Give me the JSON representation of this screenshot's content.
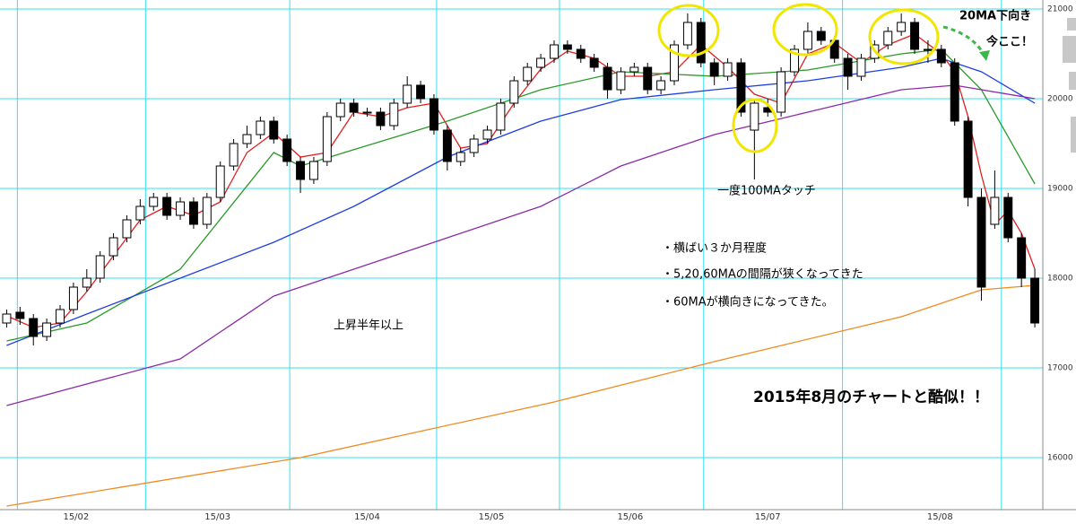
{
  "chart_data": {
    "type": "candlestick",
    "xlim": [
      -0.5,
      77.6
    ],
    "ylim": [
      15420,
      21100
    ],
    "yticks": [
      16000,
      17000,
      18000,
      19000,
      20000,
      21000
    ],
    "xticks": [
      {
        "value": 5.2,
        "label": "15/02"
      },
      {
        "value": 15.8,
        "label": "15/03"
      },
      {
        "value": 27,
        "label": "15/04"
      },
      {
        "value": 36.3,
        "label": "15/05"
      },
      {
        "value": 46.7,
        "label": "15/06"
      },
      {
        "value": 57,
        "label": "15/07"
      },
      {
        "value": 69.9,
        "label": "15/08"
      }
    ],
    "xgrid": [
      0.8,
      10.4,
      21.2,
      32.2,
      41.4,
      52.2,
      62.6,
      74.5
    ],
    "grid": true,
    "up_color": "#ffffff",
    "down_color": "#000000",
    "ohlc": [
      [
        17500,
        17650,
        17450,
        17600
      ],
      [
        17620,
        17680,
        17480,
        17550
      ],
      [
        17550,
        17600,
        17250,
        17350
      ],
      [
        17350,
        17550,
        17300,
        17500
      ],
      [
        17500,
        17700,
        17450,
        17650
      ],
      [
        17650,
        17950,
        17600,
        17900
      ],
      [
        17900,
        18100,
        17850,
        18000
      ],
      [
        18000,
        18300,
        17950,
        18250
      ],
      [
        18250,
        18500,
        18200,
        18450
      ],
      [
        18450,
        18700,
        18400,
        18650
      ],
      [
        18650,
        18880,
        18600,
        18800
      ],
      [
        18800,
        18950,
        18750,
        18900
      ],
      [
        18900,
        18950,
        18650,
        18700
      ],
      [
        18700,
        18900,
        18650,
        18850
      ],
      [
        18850,
        18900,
        18550,
        18600
      ],
      [
        18600,
        18950,
        18550,
        18900
      ],
      [
        18900,
        19300,
        18850,
        19250
      ],
      [
        19250,
        19550,
        19200,
        19500
      ],
      [
        19500,
        19700,
        19450,
        19600
      ],
      [
        19600,
        19800,
        19550,
        19750
      ],
      [
        19750,
        19800,
        19500,
        19550
      ],
      [
        19550,
        19600,
        19250,
        19300
      ],
      [
        19300,
        19350,
        18950,
        19100
      ],
      [
        19100,
        19350,
        19050,
        19300
      ],
      [
        19300,
        19850,
        19250,
        19800
      ],
      [
        19800,
        20000,
        19750,
        19950
      ],
      [
        19950,
        20000,
        19800,
        19850
      ],
      [
        19850,
        19900,
        19800,
        19850
      ],
      [
        19850,
        19900,
        19650,
        19700
      ],
      [
        19700,
        20000,
        19650,
        19950
      ],
      [
        19950,
        20250,
        19900,
        20150
      ],
      [
        20150,
        20200,
        19950,
        20000
      ],
      [
        20000,
        20050,
        19600,
        19650
      ],
      [
        19650,
        19700,
        19200,
        19300
      ],
      [
        19300,
        19450,
        19250,
        19400
      ],
      [
        19400,
        19600,
        19350,
        19550
      ],
      [
        19550,
        19700,
        19500,
        19650
      ],
      [
        19650,
        20000,
        19600,
        19950
      ],
      [
        19950,
        20250,
        19900,
        20200
      ],
      [
        20200,
        20400,
        20150,
        20350
      ],
      [
        20350,
        20500,
        20300,
        20450
      ],
      [
        20450,
        20650,
        20400,
        20600
      ],
      [
        20600,
        20650,
        20500,
        20550
      ],
      [
        20550,
        20600,
        20400,
        20450
      ],
      [
        20450,
        20500,
        20300,
        20350
      ],
      [
        20350,
        20400,
        20000,
        20100
      ],
      [
        20100,
        20350,
        20050,
        20300
      ],
      [
        20300,
        20400,
        20250,
        20350
      ],
      [
        20350,
        20400,
        20050,
        20100
      ],
      [
        20100,
        20250,
        20050,
        20200
      ],
      [
        20200,
        20650,
        20150,
        20600
      ],
      [
        20600,
        20950,
        20550,
        20850
      ],
      [
        20850,
        20900,
        20350,
        20400
      ],
      [
        20400,
        20450,
        20150,
        20250
      ],
      [
        20250,
        20450,
        20200,
        20400
      ],
      [
        20400,
        20450,
        19800,
        19850
      ],
      [
        19650,
        20000,
        19100,
        19950
      ],
      [
        19900,
        20000,
        19800,
        19850
      ],
      [
        19850,
        20350,
        19800,
        20300
      ],
      [
        20300,
        20600,
        20250,
        20550
      ],
      [
        20550,
        20850,
        20500,
        20750
      ],
      [
        20750,
        20800,
        20600,
        20650
      ],
      [
        20650,
        20700,
        20400,
        20450
      ],
      [
        20450,
        20500,
        20100,
        20250
      ],
      [
        20250,
        20500,
        20200,
        20450
      ],
      [
        20450,
        20650,
        20400,
        20600
      ],
      [
        20600,
        20800,
        20550,
        20750
      ],
      [
        20750,
        20950,
        20700,
        20850
      ],
      [
        20850,
        20900,
        20500,
        20550
      ],
      [
        20550,
        20650,
        20400,
        20550
      ],
      [
        20550,
        20600,
        20350,
        20400
      ],
      [
        20400,
        20450,
        19700,
        19750
      ],
      [
        19750,
        19800,
        18800,
        18900
      ],
      [
        18900,
        19000,
        17750,
        17900
      ],
      [
        18600,
        19200,
        18550,
        18900
      ],
      [
        18900,
        18950,
        18400,
        18450
      ],
      [
        18450,
        18500,
        17900,
        18000
      ],
      [
        18000,
        18100,
        17450,
        17500
      ]
    ],
    "series": [
      {
        "color": "#e02020",
        "x": [
          0,
          2,
          4,
          6,
          8,
          10,
          12,
          14,
          16,
          18,
          20,
          22,
          24,
          26,
          28,
          30,
          32,
          34,
          36,
          38,
          40,
          42,
          44,
          46,
          48,
          50,
          52,
          54,
          56,
          58,
          60,
          62,
          64,
          66,
          68,
          70,
          71,
          72,
          73,
          74,
          75,
          76,
          77
        ],
        "values": [
          17580,
          17450,
          17500,
          17850,
          18250,
          18650,
          18800,
          18700,
          18850,
          19400,
          19620,
          19350,
          19400,
          19850,
          19800,
          19900,
          19950,
          19450,
          19500,
          19950,
          20330,
          20530,
          20450,
          20250,
          20250,
          20300,
          20600,
          20350,
          20050,
          19950,
          20500,
          20620,
          20400,
          20600,
          20720,
          20500,
          20300,
          19800,
          19150,
          18600,
          18750,
          18500,
          18100
        ]
      },
      {
        "color": "#2a9a2a",
        "x": [
          0,
          6,
          13,
          20,
          22,
          33,
          40,
          46,
          53,
          60,
          67,
          70,
          73,
          77
        ],
        "values": [
          17300,
          17500,
          18100,
          19400,
          19250,
          19750,
          20100,
          20300,
          20250,
          20320,
          20500,
          20550,
          20100,
          19050
        ]
      },
      {
        "color": "#1f3fe0",
        "x": [
          0,
          6,
          13,
          20,
          26,
          33,
          40,
          46,
          53,
          60,
          67,
          70,
          73,
          77
        ],
        "values": [
          17250,
          17600,
          18000,
          18400,
          18800,
          19350,
          19750,
          19990,
          20100,
          20200,
          20350,
          20450,
          20300,
          19950
        ]
      },
      {
        "color": "#8a2ba8",
        "x": [
          0,
          13,
          20,
          26,
          33,
          40,
          46,
          53,
          60,
          67,
          71,
          77
        ],
        "values": [
          16580,
          17100,
          17800,
          18100,
          18450,
          18800,
          19250,
          19600,
          19850,
          20100,
          20150,
          20000
        ]
      },
      {
        "color": "#f08a20",
        "x": [
          0,
          22,
          41,
          53,
          67,
          73,
          77
        ],
        "values": [
          15460,
          16000,
          16620,
          17070,
          17570,
          17870,
          17920
        ]
      }
    ],
    "annotations": [
      "20MA下向き",
      "今ここ！",
      "一度100MAタッチ",
      "・横ばい３か月程度",
      "・5,20,60MAの間隔が狭くなってきた",
      "・60MAが横向きになってきた。",
      "上昇半年以上",
      "2015年8月のチャートと酷似！！"
    ]
  }
}
